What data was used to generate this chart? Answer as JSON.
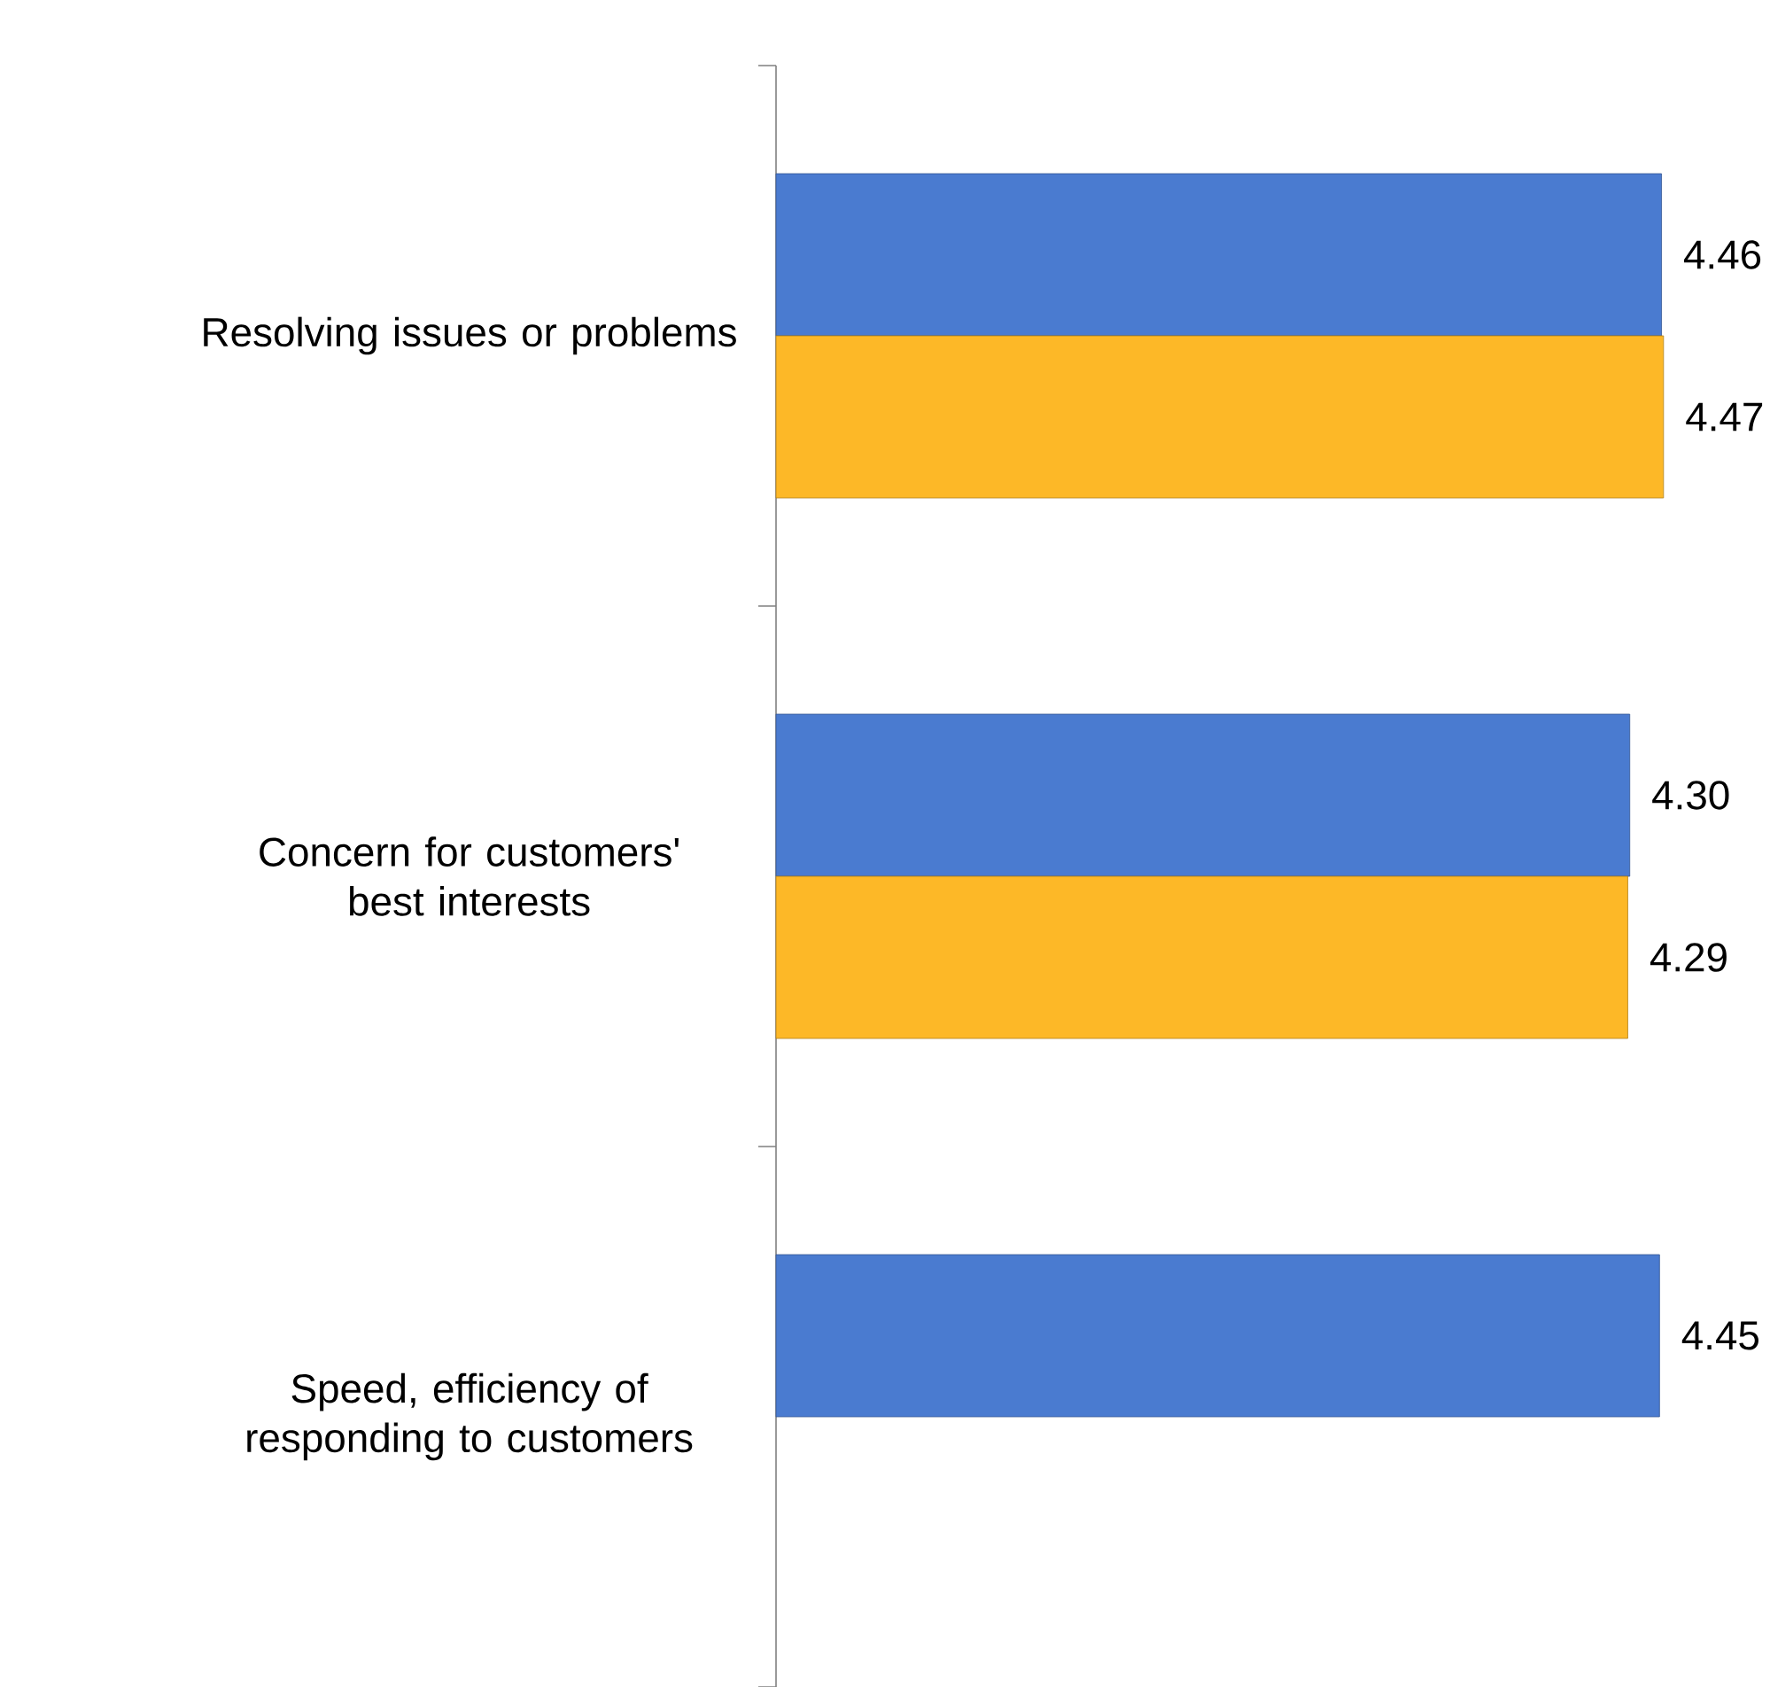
{
  "chart_data": {
    "type": "bar",
    "orientation": "horizontal",
    "categories": [
      "Resolving issues or problems",
      "Concern for customers' best interests",
      "Speed, efficiency of responding to customers"
    ],
    "series": [
      {
        "color": "#4a7bd0",
        "values": [
          4.46,
          4.3,
          4.45
        ],
        "value_labels": [
          "4.46",
          "4.30",
          "4.45"
        ]
      },
      {
        "color": "#fdb827",
        "values": [
          4.47,
          4.29,
          null
        ],
        "value_labels": [
          "4.47",
          "4.29",
          null
        ]
      }
    ],
    "tick_labels": "y",
    "grid": false
  }
}
